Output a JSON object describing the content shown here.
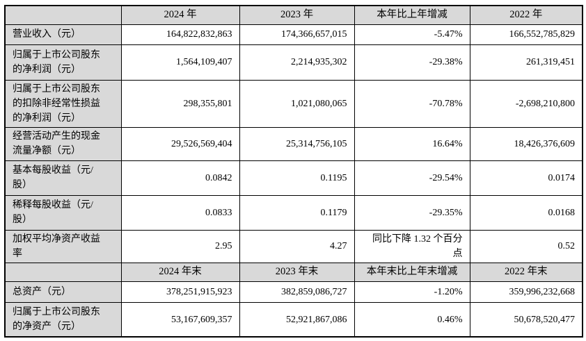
{
  "document": {
    "type": "financial-summary-table",
    "language": "zh-CN"
  },
  "colors": {
    "header_bg": "#d9d9d9",
    "label_bg": "#d9d9d9",
    "cell_bg": "#ffffff",
    "border": "#000000",
    "text": "#000000"
  },
  "table": {
    "header1": {
      "blank": "",
      "y2024": "2024 年",
      "y2023": "2023 年",
      "change": "本年比上年增减",
      "y2022": "2022 年"
    },
    "rows1": [
      {
        "label": "营业收入（元）",
        "v2024": "164,822,832,863",
        "v2023": "174,366,657,015",
        "change": "-5.47%",
        "v2022": "166,552,785,829"
      },
      {
        "label": "归属于上市公司股东\n的净利润（元）",
        "v2024": "1,564,109,407",
        "v2023": "2,214,935,302",
        "change": "-29.38%",
        "v2022": "261,319,451"
      },
      {
        "label": "归属于上市公司股东\n的扣除非经常性损益\n的净利润（元）",
        "v2024": "298,355,801",
        "v2023": "1,021,080,065",
        "change": "-70.78%",
        "v2022": "-2,698,210,800"
      },
      {
        "label": "经营活动产生的现金\n流量净额（元）",
        "v2024": "29,526,569,404",
        "v2023": "25,314,756,105",
        "change": "16.64%",
        "v2022": "18,426,376,609"
      },
      {
        "label": "基本每股收益（元/\n股）",
        "v2024": "0.0842",
        "v2023": "0.1195",
        "change": "-29.54%",
        "v2022": "0.0174"
      },
      {
        "label": "稀释每股收益（元/\n股）",
        "v2024": "0.0833",
        "v2023": "0.1179",
        "change": "-29.35%",
        "v2022": "0.0168"
      },
      {
        "label": "加权平均净资产收益\n率",
        "v2024": "2.95",
        "v2023": "4.27",
        "change": "同比下降 1.32 个百分\n点",
        "v2022": "0.52"
      }
    ],
    "header2": {
      "blank": "",
      "y2024": "2024 年末",
      "y2023": "2023 年末",
      "change": "本年末比上年末增减",
      "y2022": "2022 年末"
    },
    "rows2": [
      {
        "label": "总资产（元）",
        "v2024": "378,251,915,923",
        "v2023": "382,859,086,727",
        "change": "-1.20%",
        "v2022": "359,996,232,668"
      },
      {
        "label": "归属于上市公司股东\n的净资产（元）",
        "v2024": "53,167,609,357",
        "v2023": "52,921,867,086",
        "change": "0.46%",
        "v2022": "50,678,520,477"
      }
    ]
  }
}
